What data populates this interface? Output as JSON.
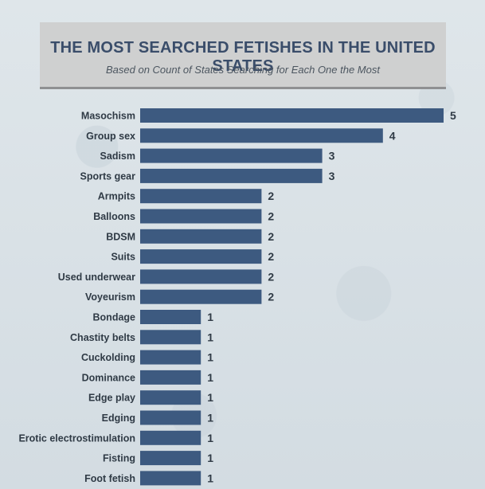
{
  "header": {
    "title": "THE MOST SEARCHED FETISHES IN THE UNITED STATES",
    "subtitle": "Based on Count of States Searching for Each One the Most"
  },
  "colors": {
    "bar": "#3d5a80",
    "text": "#2f3a45",
    "title": "#3a4d6a"
  },
  "chart_data": {
    "type": "bar",
    "orientation": "horizontal",
    "title": "THE MOST SEARCHED FETISHES IN THE UNITED STATES",
    "subtitle": "Based on Count of States Searching for Each One the Most",
    "categories": [
      "Masochism",
      "Group sex",
      "Sadism",
      "Sports gear",
      "Armpits",
      "Balloons",
      "BDSM",
      "Suits",
      "Used underwear",
      "Voyeurism",
      "Bondage",
      "Chastity belts",
      "Cuckolding",
      "Dominance",
      "Edge play",
      "Edging",
      "Erotic electrostimulation",
      "Fisting",
      "Foot fetish"
    ],
    "values": [
      5,
      4,
      3,
      3,
      2,
      2,
      2,
      2,
      2,
      2,
      1,
      1,
      1,
      1,
      1,
      1,
      1,
      1,
      1
    ],
    "xlim": [
      0,
      5
    ],
    "grid": false,
    "data_labels": true
  }
}
